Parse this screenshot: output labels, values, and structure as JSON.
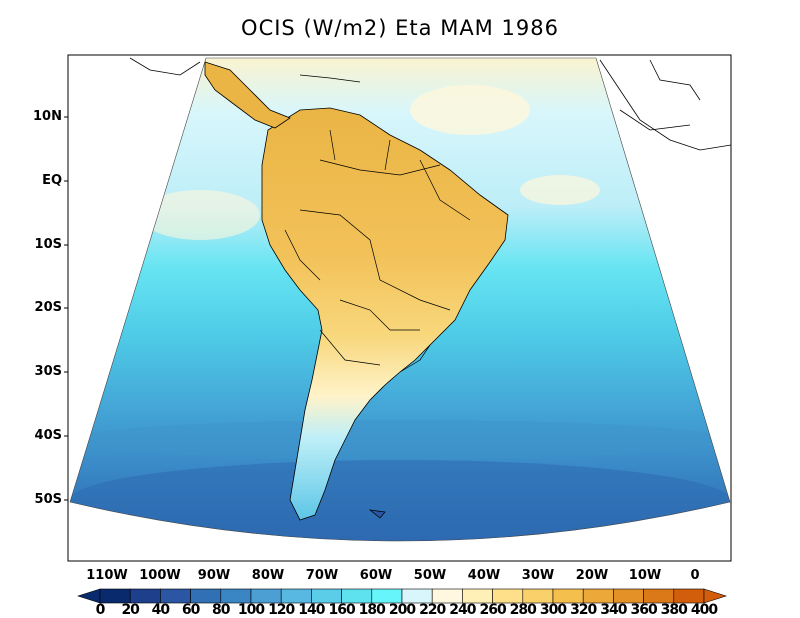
{
  "title": "OCIS (W/m2) Eta MAM 1986",
  "latitude_labels": [
    "10N",
    "EQ",
    "10S",
    "20S",
    "30S",
    "40S",
    "50S"
  ],
  "longitude_labels": [
    "110W",
    "100W",
    "90W",
    "80W",
    "70W",
    "60W",
    "50W",
    "40W",
    "30W",
    "20W",
    "10W",
    "0"
  ],
  "colorbar": {
    "ticks": [
      "0",
      "20",
      "40",
      "60",
      "80",
      "100",
      "120",
      "140",
      "160",
      "180",
      "200",
      "220",
      "240",
      "260",
      "280",
      "300",
      "320",
      "340",
      "360",
      "380",
      "400"
    ],
    "colors": [
      "#0a2a6e",
      "#1d3f8c",
      "#2a56a3",
      "#3170b5",
      "#3a86c4",
      "#4b9fd3",
      "#58b8e2",
      "#5ccde9",
      "#5fe2f0",
      "#66f5fa",
      "#d8f6fb",
      "#fff7e0",
      "#fff0b8",
      "#ffe08a",
      "#fad06a",
      "#f5bf4e",
      "#eda83a",
      "#e49128",
      "#db7818",
      "#d25e0c"
    ]
  },
  "colors": {
    "ocean_south": "#3170b5",
    "ocean_mid": "#58b8e2",
    "ocean_north": "#d8f6fb",
    "land": "#f5bf4e",
    "land_south": "#fff0b8"
  }
}
